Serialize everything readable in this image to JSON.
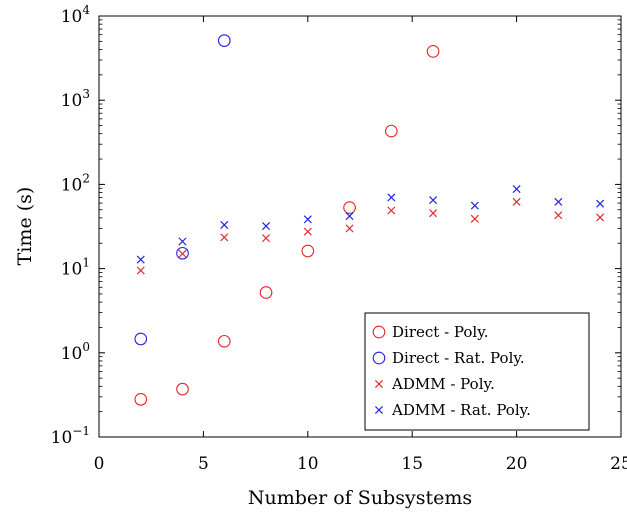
{
  "chart_data": {
    "type": "scatter",
    "title": "",
    "xlabel": "Number of Subsystems",
    "ylabel": "Time (s)",
    "xlim": [
      0,
      25
    ],
    "ylim": [
      0.1,
      10000
    ],
    "yscale": "log",
    "grid": false,
    "legend_position": "bottom-right",
    "x_ticks": [
      "0",
      "5",
      "10",
      "15",
      "20",
      "25"
    ],
    "y_ticks": [
      {
        "base": "10",
        "exp": "−1"
      },
      {
        "base": "10",
        "exp": "0"
      },
      {
        "base": "10",
        "exp": "1"
      },
      {
        "base": "10",
        "exp": "2"
      },
      {
        "base": "10",
        "exp": "3"
      },
      {
        "base": "10",
        "exp": "4"
      }
    ],
    "series": [
      {
        "name": "Direct - Poly.",
        "marker": "circle",
        "color": "#e8282d",
        "x": [
          2,
          4,
          6,
          8,
          10,
          12,
          14,
          16
        ],
        "y": [
          0.28,
          0.37,
          1.37,
          5.2,
          16.2,
          53,
          430,
          3800
        ]
      },
      {
        "name": "Direct - Rat. Poly.",
        "marker": "circle",
        "color": "#2424e6",
        "x": [
          2,
          4,
          6
        ],
        "y": [
          1.46,
          15.2,
          5100
        ]
      },
      {
        "name": "ADMM - Poly.",
        "marker": "x",
        "color": "#e8282d",
        "x": [
          2,
          4,
          6,
          8,
          10,
          12,
          14,
          16,
          18,
          20,
          22,
          24
        ],
        "y": [
          9.5,
          15,
          23.5,
          23,
          27.5,
          30,
          49,
          45.5,
          39,
          62,
          43,
          40.5
        ]
      },
      {
        "name": "ADMM - Rat. Poly.",
        "marker": "x",
        "color": "#2424e6",
        "x": [
          2,
          4,
          6,
          8,
          10,
          12,
          14,
          16,
          18,
          20,
          22,
          24
        ],
        "y": [
          12.8,
          21,
          33,
          32,
          38.5,
          42,
          70,
          65,
          56,
          88,
          62,
          59
        ]
      }
    ]
  }
}
